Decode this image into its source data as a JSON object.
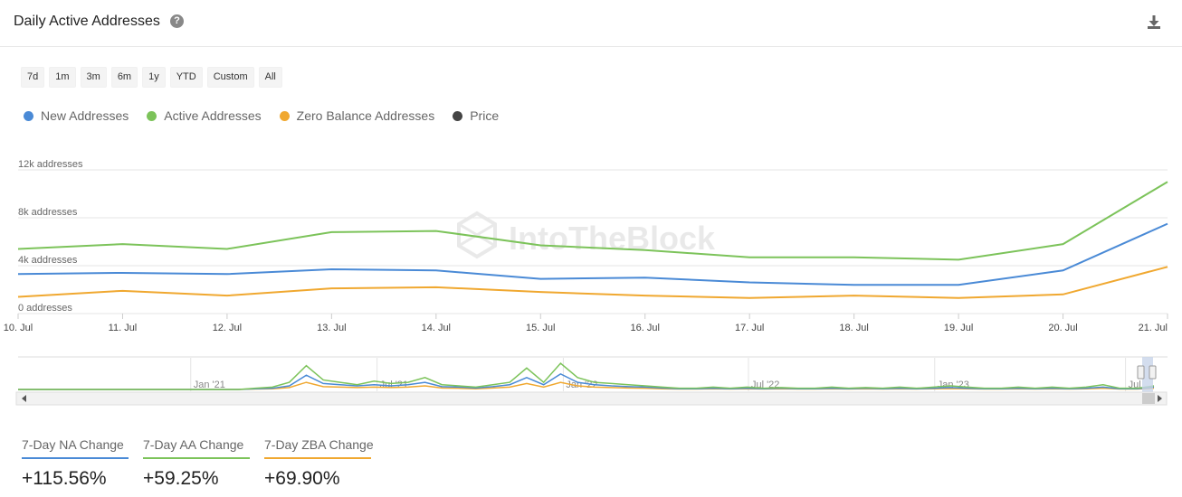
{
  "header": {
    "title": "Daily Active Addresses",
    "help_glyph": "?"
  },
  "ranges": [
    "7d",
    "1m",
    "3m",
    "6m",
    "1y",
    "YTD",
    "Custom",
    "All"
  ],
  "legend": [
    {
      "label": "New Addresses",
      "color": "#4a8ad6"
    },
    {
      "label": "Active Addresses",
      "color": "#7cc35a"
    },
    {
      "label": "Zero Balance Addresses",
      "color": "#f0a830"
    },
    {
      "label": "Price",
      "color": "#444444"
    }
  ],
  "watermark": "IntoTheBlock",
  "chart_data": {
    "type": "line",
    "categories": [
      "10. Jul",
      "11. Jul",
      "12. Jul",
      "13. Jul",
      "14. Jul",
      "15. Jul",
      "16. Jul",
      "17. Jul",
      "18. Jul",
      "19. Jul",
      "20. Jul",
      "21. Jul"
    ],
    "y_ticks": [
      "0 addresses",
      "4k addresses",
      "8k addresses",
      "12k addresses"
    ],
    "ylim": [
      0,
      12000
    ],
    "series": [
      {
        "name": "New Addresses",
        "color": "#4a8ad6",
        "values": [
          3300,
          3400,
          3300,
          3700,
          3600,
          2900,
          3000,
          2600,
          2400,
          2400,
          3600,
          7500
        ]
      },
      {
        "name": "Active Addresses",
        "color": "#7cc35a",
        "values": [
          5400,
          5800,
          5400,
          6800,
          6900,
          5700,
          5300,
          4700,
          4700,
          4500,
          5800,
          11000
        ]
      },
      {
        "name": "Zero Balance Addresses",
        "color": "#f0a830",
        "values": [
          1400,
          1900,
          1500,
          2100,
          2200,
          1800,
          1500,
          1300,
          1500,
          1300,
          1600,
          3900
        ]
      }
    ],
    "navigator": {
      "labels": [
        "Jan '21",
        "Jul '21",
        "Jan '22",
        "Jul '22",
        "Jan '23",
        "Jul"
      ],
      "active": [
        0,
        0,
        0,
        0,
        0,
        0,
        0,
        0,
        0,
        0,
        0,
        0,
        0,
        0,
        0.05,
        0.1,
        0.3,
        1.0,
        0.4,
        0.3,
        0.2,
        0.35,
        0.25,
        0.3,
        0.5,
        0.2,
        0.15,
        0.1,
        0.2,
        0.3,
        0.9,
        0.3,
        1.1,
        0.5,
        0.3,
        0.25,
        0.2,
        0.15,
        0.1,
        0.05,
        0.05,
        0.1,
        0.05,
        0.1,
        0.05,
        0.08,
        0.05,
        0.05,
        0.1,
        0.05,
        0.08,
        0.05,
        0.1,
        0.05,
        0.1,
        0.15,
        0.1,
        0.05,
        0.05,
        0.1,
        0.05,
        0.1,
        0.05,
        0.1,
        0.2,
        0.05,
        0.05,
        0.15
      ],
      "new": [
        0,
        0,
        0,
        0,
        0,
        0,
        0,
        0,
        0,
        0,
        0,
        0,
        0,
        0,
        0.03,
        0.05,
        0.15,
        0.6,
        0.25,
        0.2,
        0.15,
        0.2,
        0.15,
        0.2,
        0.3,
        0.12,
        0.1,
        0.06,
        0.12,
        0.2,
        0.5,
        0.2,
        0.65,
        0.3,
        0.2,
        0.15,
        0.12,
        0.1,
        0.06,
        0.03,
        0.03,
        0.05,
        0.03,
        0.05,
        0.03,
        0.05,
        0.03,
        0.03,
        0.05,
        0.03,
        0.05,
        0.03,
        0.05,
        0.03,
        0.05,
        0.08,
        0.05,
        0.03,
        0.03,
        0.05,
        0.03,
        0.05,
        0.03,
        0.05,
        0.1,
        0.03,
        0.03,
        0.1
      ],
      "zero": [
        0,
        0,
        0,
        0,
        0,
        0,
        0,
        0,
        0,
        0,
        0,
        0,
        0,
        0,
        0.02,
        0.03,
        0.08,
        0.3,
        0.12,
        0.1,
        0.08,
        0.1,
        0.08,
        0.1,
        0.15,
        0.06,
        0.05,
        0.03,
        0.06,
        0.1,
        0.25,
        0.1,
        0.3,
        0.15,
        0.1,
        0.08,
        0.06,
        0.05,
        0.03,
        0.02,
        0.02,
        0.03,
        0.02,
        0.03,
        0.02,
        0.03,
        0.02,
        0.02,
        0.03,
        0.02,
        0.03,
        0.02,
        0.03,
        0.02,
        0.03,
        0.04,
        0.03,
        0.02,
        0.02,
        0.03,
        0.02,
        0.03,
        0.02,
        0.03,
        0.05,
        0.02,
        0.02,
        0.05
      ]
    }
  },
  "stats": [
    {
      "label": "7-Day NA Change",
      "value": "+115.56%",
      "color": "#4a8ad6"
    },
    {
      "label": "7-Day AA Change",
      "value": "+59.25%",
      "color": "#7cc35a"
    },
    {
      "label": "7-Day ZBA Change",
      "value": "+69.90%",
      "color": "#f0a830"
    }
  ]
}
